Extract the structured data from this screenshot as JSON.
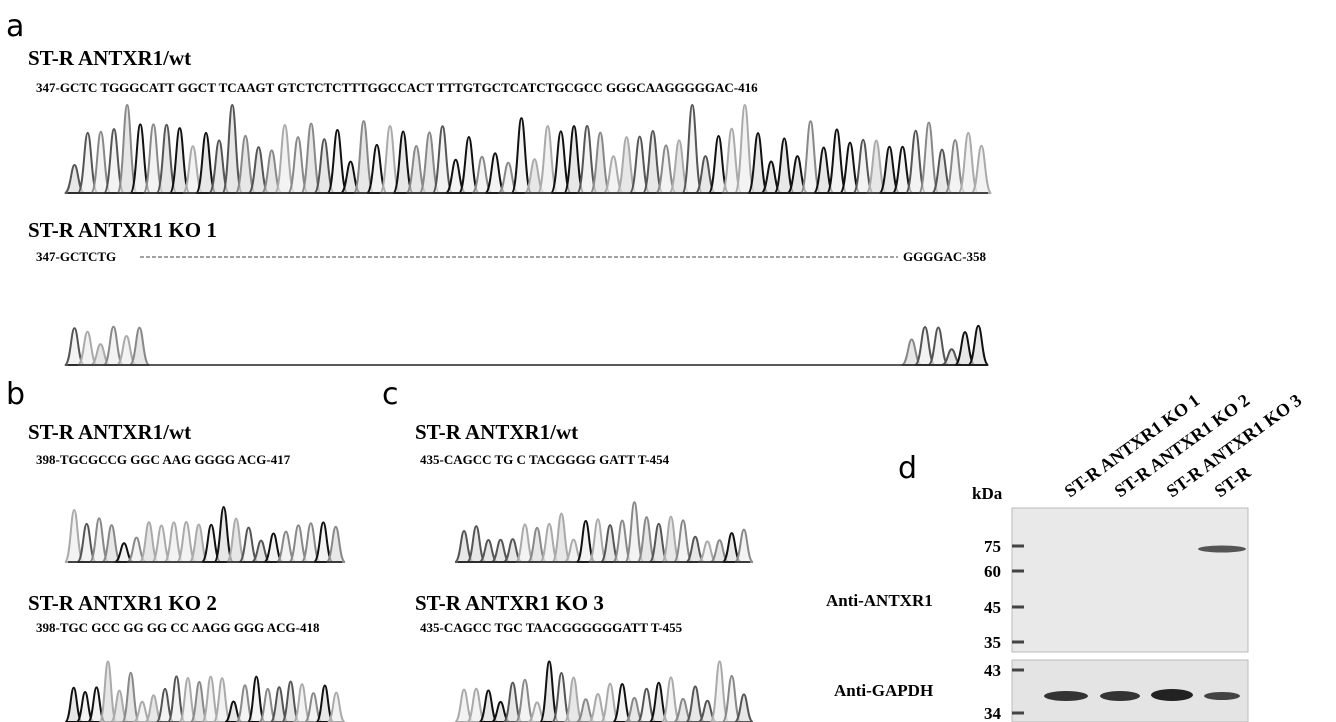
{
  "panel_a": {
    "label": "a",
    "wt": {
      "title": "ST-R ANTXR1/wt",
      "sequence": "347-GCTC TGGGCATT GGCT TCAAGT GTCTCTCTTTGGCCACT TTTGTGCTCATCTGCGCC GGGCAAGGGGGAC-416"
    },
    "ko": {
      "title": "ST-R ANTXR1 KO 1",
      "sequence_start": "347-GCTCTG",
      "sequence_end": "GGGGAC-358"
    }
  },
  "panel_b": {
    "label": "b",
    "wt": {
      "title": "ST-R ANTXR1/wt",
      "sequence": "398-TGCGCCG GGC AAG GGGG ACG-417"
    },
    "ko": {
      "title": "ST-R ANTXR1 KO 2",
      "sequence": "398-TGC GCC GG GG CC AAGG GGG ACG-418"
    }
  },
  "panel_c": {
    "label": "c",
    "wt": {
      "title": "ST-R ANTXR1/wt",
      "sequence": "435-CAGCC TG C TACGGGG GATT T-454"
    },
    "ko": {
      "title": "ST-R ANTXR1 KO 3",
      "sequence": "435-CAGCC TGC TAACGGGGGGATT T-455"
    }
  },
  "panel_d": {
    "label": "d",
    "unit": "kDa",
    "lanes": [
      "ST-R ANTXR1 KO 1",
      "ST-R ANTXR1 KO 2",
      "ST-R ANTXR1 KO 3",
      "ST-R"
    ],
    "top_blot": {
      "antibody": "Anti-ANTXR1",
      "markers": [
        75,
        60,
        45,
        35
      ]
    },
    "bottom_blot": {
      "antibody": "Anti-GAPDH",
      "markers": [
        43,
        34
      ]
    }
  }
}
